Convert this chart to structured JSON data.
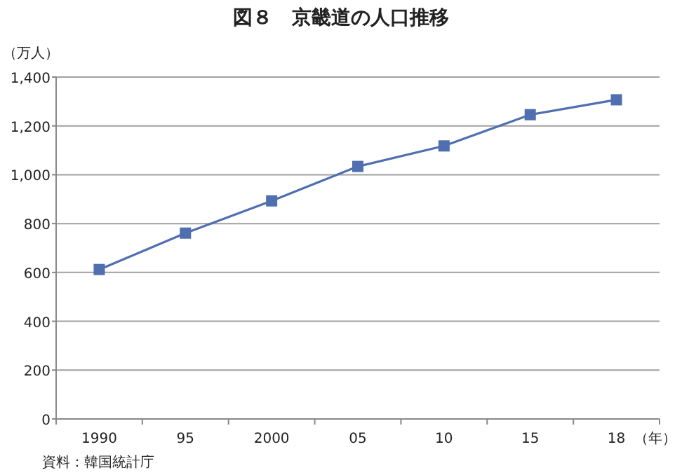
{
  "chart_data": {
    "type": "line",
    "title": "図８　京畿道の人口推移",
    "xlabel": "（年）",
    "ylabel": "（万人）",
    "categories": [
      "1990",
      "95",
      "2000",
      "05",
      "10",
      "15",
      "18"
    ],
    "series": [
      {
        "color": "#4f6fb0",
        "values": [
          612,
          761,
          893,
          1034,
          1118,
          1246,
          1307
        ]
      }
    ],
    "ylim": [
      0,
      1400
    ],
    "yticks": [
      0,
      {
        "value": 200,
        "label": "200"
      },
      {
        "value": 400,
        "label": "400"
      },
      {
        "value": 600,
        "label": "600"
      },
      {
        "value": 800,
        "label": "800"
      },
      {
        "value": 1000,
        "label": "1,000"
      },
      {
        "value": 1200,
        "label": "1,200"
      },
      {
        "value": 1400,
        "label": "1,400"
      }
    ],
    "grid": "y",
    "marker": "square",
    "line_style": "solid",
    "annotations": [
      "資料：韓国統計庁"
    ]
  }
}
